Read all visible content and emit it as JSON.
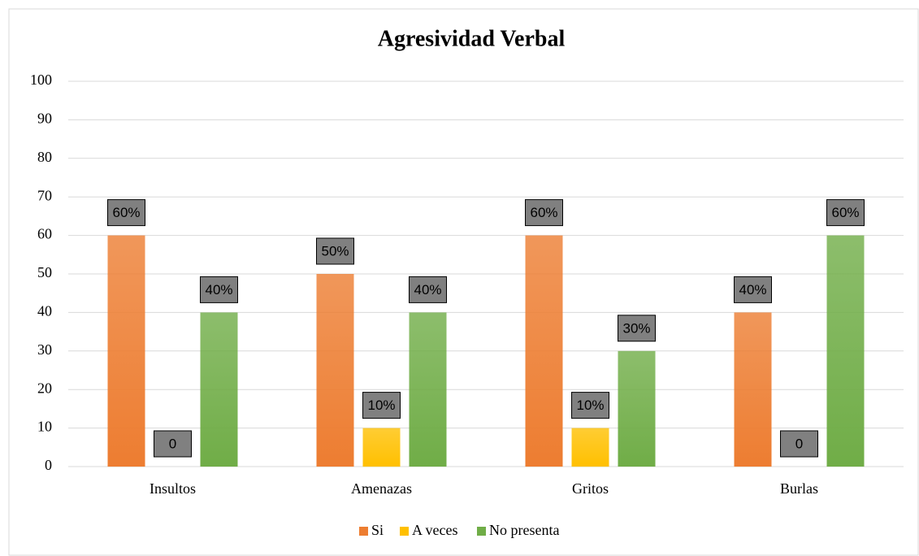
{
  "chart_data": {
    "type": "bar",
    "title": "Agresividad Verbal",
    "categories": [
      "Insultos",
      "Amenazas",
      "Gritos",
      "Burlas"
    ],
    "series": [
      {
        "name": "Si",
        "color": "#ed7d31",
        "values": [
          60,
          50,
          60,
          40
        ],
        "value_labels": [
          "60%",
          "50%",
          "60%",
          "40%"
        ]
      },
      {
        "name": "A veces",
        "color": "#ffc000",
        "values": [
          0,
          10,
          10,
          0
        ],
        "value_labels": [
          "0",
          "10%",
          "10%",
          "0"
        ]
      },
      {
        "name": "No presenta",
        "color": "#70ad47",
        "values": [
          40,
          40,
          30,
          60
        ],
        "value_labels": [
          "40%",
          "40%",
          "30%",
          "60%"
        ]
      }
    ],
    "ylim": [
      0,
      100
    ],
    "yticks": [
      0,
      10,
      20,
      30,
      40,
      50,
      60,
      70,
      80,
      90,
      100
    ],
    "grid": true,
    "legend": "bottom"
  }
}
